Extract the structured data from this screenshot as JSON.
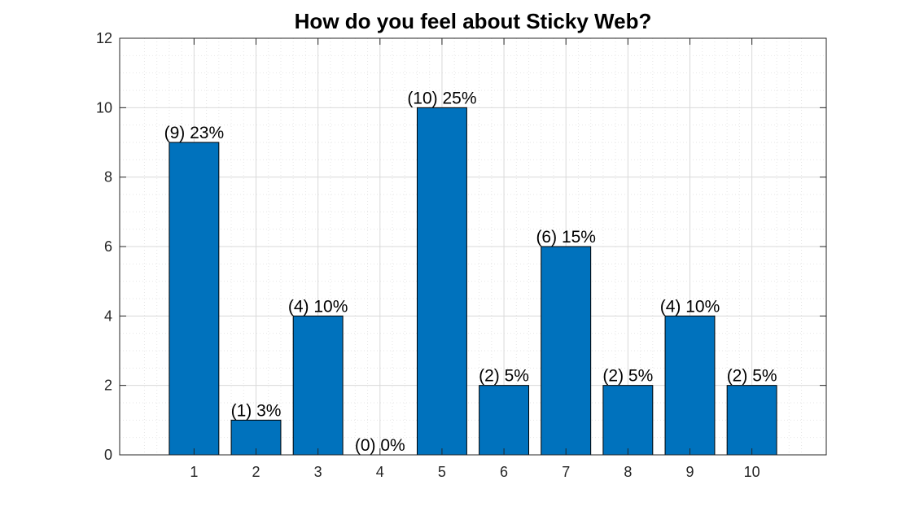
{
  "chart_data": {
    "type": "bar",
    "title": "How do you feel about Sticky Web?",
    "xlabel": "",
    "ylabel": "",
    "categories": [
      "1",
      "2",
      "3",
      "4",
      "5",
      "6",
      "7",
      "8",
      "9",
      "10"
    ],
    "values": [
      9,
      1,
      4,
      0,
      10,
      2,
      6,
      2,
      4,
      2
    ],
    "data_labels": [
      "(9) 23%",
      "(1) 3%",
      "(4) 10%",
      "(0) 0%",
      "(10) 25%",
      "(2) 5%",
      "(6) 15%",
      "(2) 5%",
      "(4) 10%",
      "(2) 5%"
    ],
    "xlim": [
      -0.2,
      11.2
    ],
    "ylim": [
      0,
      12
    ],
    "yticks": [
      "0",
      "2",
      "4",
      "6",
      "8",
      "10",
      "12"
    ],
    "grid": true,
    "minor_grid": true,
    "legend": "none",
    "bar_color": "#0072bd"
  }
}
